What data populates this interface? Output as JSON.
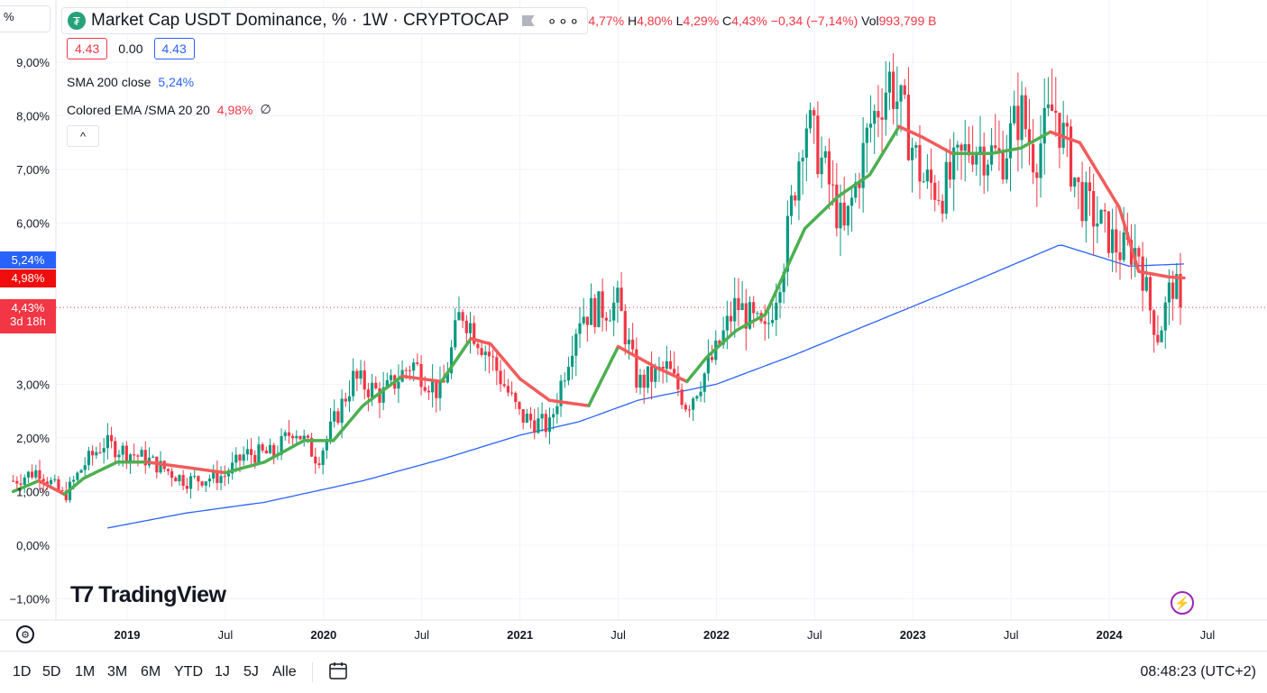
{
  "legend": {
    "symbol_title": "Market Cap USDT Dominance, %",
    "interval": " · 1W · CRYPTOCAP",
    "ohlc_prefix": "4,77%",
    "h_label": "H",
    "h_value": "4,80%",
    "l_label": "L",
    "l_value": "4,29%",
    "c_label": "C",
    "c_value": "4,43%",
    "change": "−0,34 (−7,14%)",
    "vol_label": "Vol",
    "vol_value": "993,799 B",
    "bid": "4.43",
    "spread": "0.00",
    "ask": "4.43"
  },
  "indicators": {
    "sma_label": "SMA 200 close",
    "sma_value": "5,24%",
    "ema_label": "Colored EMA /SMA 20 20",
    "ema_value": "4,98%",
    "ema_extra": "∅",
    "collapse_icon": "^"
  },
  "scale_label": "%",
  "price_badges": {
    "sma": "5,24%",
    "ema": "4,98%",
    "last": "4,43%",
    "countdown": "3d 18h"
  },
  "brand": "TradingView",
  "range_buttons": [
    "1D",
    "5D",
    "1M",
    "3M",
    "6M",
    "YTD",
    "1J",
    "5J",
    "Alle"
  ],
  "clock": "08:48:23 (UTC+2)",
  "colors": {
    "up": "#089981",
    "down": "#f23645",
    "ma_up": "#4caf50",
    "ma_down": "#f35b5b",
    "sma": "#2962ff"
  },
  "chart_data": {
    "type": "candlestick",
    "title": "Market Cap USDT Dominance, %",
    "interval": "1W",
    "y_ticks": [
      "9,00%",
      "8,00%",
      "7,00%",
      "6,00%",
      "3,00%",
      "2,00%",
      "1,00%",
      "0,00%",
      "−1,00%"
    ],
    "y_tick_values": [
      9,
      8,
      7,
      6,
      3,
      2,
      1,
      0,
      -1
    ],
    "ylim": [
      -1.3,
      9.7
    ],
    "x_ticks": [
      "2019",
      "Jul",
      "2020",
      "Jul",
      "2021",
      "Jul",
      "2022",
      "Jul",
      "2023",
      "Jul",
      "2024",
      "Jul"
    ],
    "x_tick_years": [
      2019.0,
      2019.5,
      2020.0,
      2020.5,
      2021.0,
      2021.5,
      2022.0,
      2022.5,
      2023.0,
      2023.5,
      2024.0,
      2024.5
    ],
    "x_range": [
      2018.42,
      2024.98
    ],
    "last_close": 4.43,
    "ema_anchors": [
      [
        2018.42,
        1.0
      ],
      [
        2018.55,
        1.2
      ],
      [
        2018.68,
        0.95
      ],
      [
        2018.78,
        1.25
      ],
      [
        2018.95,
        1.55
      ],
      [
        2019.1,
        1.55
      ],
      [
        2019.3,
        1.45
      ],
      [
        2019.5,
        1.35
      ],
      [
        2019.7,
        1.55
      ],
      [
        2019.9,
        1.95
      ],
      [
        2020.05,
        1.95
      ],
      [
        2020.2,
        2.6
      ],
      [
        2020.4,
        3.15
      ],
      [
        2020.6,
        3.05
      ],
      [
        2020.75,
        3.85
      ],
      [
        2020.85,
        3.75
      ],
      [
        2021.0,
        3.1
      ],
      [
        2021.15,
        2.7
      ],
      [
        2021.35,
        2.6
      ],
      [
        2021.5,
        3.7
      ],
      [
        2021.7,
        3.3
      ],
      [
        2021.85,
        3.05
      ],
      [
        2021.95,
        3.5
      ],
      [
        2022.1,
        4.0
      ],
      [
        2022.25,
        4.3
      ],
      [
        2022.45,
        5.9
      ],
      [
        2022.62,
        6.5
      ],
      [
        2022.78,
        6.9
      ],
      [
        2022.93,
        7.8
      ],
      [
        2023.05,
        7.6
      ],
      [
        2023.2,
        7.3
      ],
      [
        2023.4,
        7.3
      ],
      [
        2023.55,
        7.4
      ],
      [
        2023.7,
        7.7
      ],
      [
        2023.85,
        7.5
      ],
      [
        2024.05,
        6.3
      ],
      [
        2024.15,
        5.1
      ],
      [
        2024.3,
        5.0
      ],
      [
        2024.38,
        4.98
      ]
    ],
    "sma_anchors": [
      [
        2018.9,
        0.32
      ],
      [
        2019.3,
        0.6
      ],
      [
        2019.7,
        0.8
      ],
      [
        2020.2,
        1.2
      ],
      [
        2020.6,
        1.6
      ],
      [
        2021.0,
        2.05
      ],
      [
        2021.3,
        2.3
      ],
      [
        2021.6,
        2.7
      ],
      [
        2022.0,
        3.0
      ],
      [
        2022.4,
        3.55
      ],
      [
        2022.9,
        4.3
      ],
      [
        2023.3,
        4.9
      ],
      [
        2023.75,
        5.6
      ],
      [
        2024.1,
        5.2
      ],
      [
        2024.38,
        5.24
      ]
    ],
    "price_anchors": [
      [
        2018.42,
        1.2
      ],
      [
        2018.55,
        1.4
      ],
      [
        2018.68,
        0.9
      ],
      [
        2018.78,
        1.5
      ],
      [
        2018.88,
        1.9
      ],
      [
        2019.1,
        1.6
      ],
      [
        2019.3,
        1.2
      ],
      [
        2019.5,
        1.3
      ],
      [
        2019.6,
        1.7
      ],
      [
        2019.75,
        1.7
      ],
      [
        2019.85,
        2.2
      ],
      [
        2019.97,
        1.6
      ],
      [
        2020.15,
        3.1
      ],
      [
        2020.3,
        2.8
      ],
      [
        2020.45,
        3.4
      ],
      [
        2020.6,
        2.8
      ],
      [
        2020.7,
        4.4
      ],
      [
        2020.85,
        3.5
      ],
      [
        2021.0,
        2.4
      ],
      [
        2021.15,
        2.2
      ],
      [
        2021.3,
        4.3
      ],
      [
        2021.5,
        4.5
      ],
      [
        2021.6,
        3.0
      ],
      [
        2021.75,
        3.3
      ],
      [
        2021.85,
        2.6
      ],
      [
        2022.0,
        3.6
      ],
      [
        2022.1,
        4.5
      ],
      [
        2022.25,
        3.9
      ],
      [
        2022.35,
        5.5
      ],
      [
        2022.45,
        8.0
      ],
      [
        2022.55,
        7.0
      ],
      [
        2022.65,
        5.8
      ],
      [
        2022.78,
        7.8
      ],
      [
        2022.88,
        8.7
      ],
      [
        2022.95,
        8.0
      ],
      [
        2023.05,
        6.8
      ],
      [
        2023.15,
        6.6
      ],
      [
        2023.3,
        7.5
      ],
      [
        2023.45,
        7.2
      ],
      [
        2023.55,
        8.1
      ],
      [
        2023.62,
        7.2
      ],
      [
        2023.72,
        8.2
      ],
      [
        2023.85,
        6.5
      ],
      [
        2023.95,
        6.0
      ],
      [
        2024.05,
        5.5
      ],
      [
        2024.15,
        5.5
      ],
      [
        2024.2,
        4.5
      ],
      [
        2024.25,
        3.9
      ],
      [
        2024.32,
        4.9
      ],
      [
        2024.38,
        4.43
      ]
    ]
  }
}
